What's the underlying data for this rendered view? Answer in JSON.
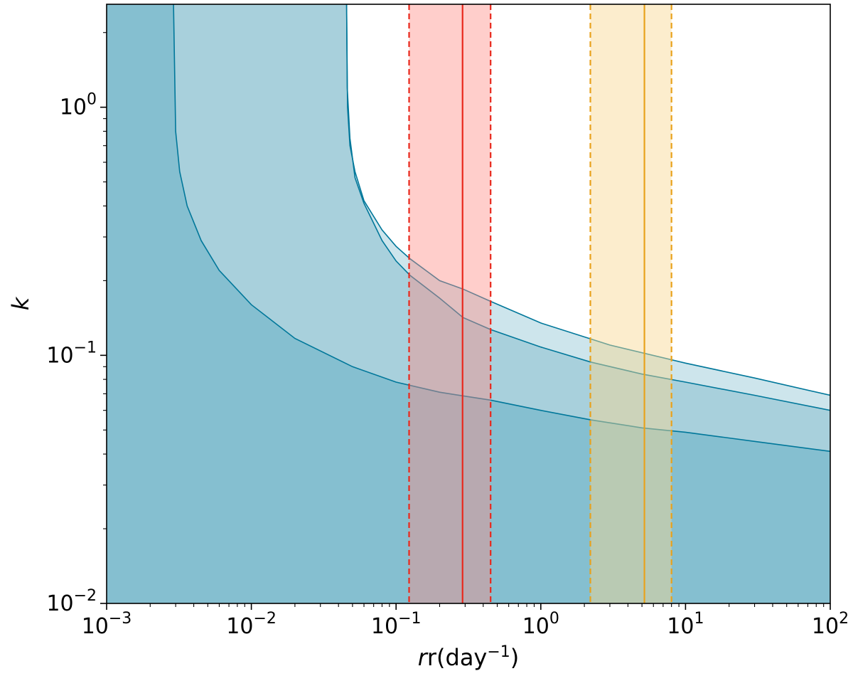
{
  "chart_data": {
    "type": "area",
    "x_scale": "log",
    "y_scale": "log",
    "xlim": [
      0.001,
      100
    ],
    "ylim": [
      0.01,
      2.6
    ],
    "xlabel": {
      "base": "r(day",
      "sup": "−1",
      "tail": ")"
    },
    "ylabel": "k",
    "x_ticks": [
      {
        "value": 0.001,
        "base": "10",
        "exp": "−3"
      },
      {
        "value": 0.01,
        "base": "10",
        "exp": "−2"
      },
      {
        "value": 0.1,
        "base": "10",
        "exp": "−1"
      },
      {
        "value": 1,
        "base": "10",
        "exp": "0"
      },
      {
        "value": 10,
        "base": "10",
        "exp": "1"
      },
      {
        "value": 100,
        "base": "10",
        "exp": "2"
      }
    ],
    "y_ticks": [
      {
        "value": 0.01,
        "base": "10",
        "exp": "−2"
      },
      {
        "value": 0.1,
        "base": "10",
        "exp": "−1"
      },
      {
        "value": 1,
        "base": "10",
        "exp": "0"
      }
    ],
    "grid": false,
    "legend": "none",
    "regions": [
      {
        "id": "region-light",
        "fill": "#cde5ec",
        "boundary_color": "#00779a",
        "x": [
          0.0455,
          0.0462,
          0.048,
          0.052,
          0.06,
          0.08,
          0.1,
          0.125,
          0.2,
          0.29,
          0.45,
          1,
          3,
          10,
          30,
          100
        ],
        "k": [
          2.6,
          1.0,
          0.7,
          0.55,
          0.42,
          0.32,
          0.275,
          0.245,
          0.2,
          0.185,
          0.165,
          0.135,
          0.11,
          0.093,
          0.081,
          0.069
        ]
      },
      {
        "id": "region-mid",
        "fill": "#a8d0dc",
        "boundary_color": "#00779a",
        "x": [
          0.0455,
          0.046,
          0.048,
          0.052,
          0.06,
          0.08,
          0.1,
          0.125,
          0.2,
          0.29,
          0.45,
          1,
          2.2,
          5,
          10,
          30,
          100
        ],
        "k": [
          2.6,
          1.2,
          0.75,
          0.52,
          0.41,
          0.29,
          0.24,
          0.21,
          0.17,
          0.142,
          0.127,
          0.108,
          0.094,
          0.084,
          0.078,
          0.069,
          0.06
        ]
      },
      {
        "id": "region-dark",
        "fill": "#85bfd0",
        "boundary_color": "#00779a",
        "x": [
          0.0029,
          0.003,
          0.0032,
          0.0036,
          0.0045,
          0.006,
          0.01,
          0.02,
          0.05,
          0.1,
          0.2,
          0.45,
          1,
          2.2,
          5,
          10,
          30,
          100
        ],
        "k": [
          2.6,
          0.8,
          0.55,
          0.4,
          0.29,
          0.22,
          0.16,
          0.117,
          0.09,
          0.078,
          0.071,
          0.066,
          0.06,
          0.055,
          0.051,
          0.049,
          0.045,
          0.041
        ]
      }
    ],
    "bands": [
      {
        "id": "band-red",
        "fill": "#ff8a84",
        "fill_opacity": 0.42,
        "line_color": "#e8281c",
        "lower": 0.123,
        "center": 0.288,
        "upper": 0.45
      },
      {
        "id": "band-orange",
        "fill": "#f8d890",
        "fill_opacity": 0.45,
        "line_color": "#e8a21c",
        "lower": 2.2,
        "center": 5.2,
        "upper": 8.0
      }
    ]
  }
}
